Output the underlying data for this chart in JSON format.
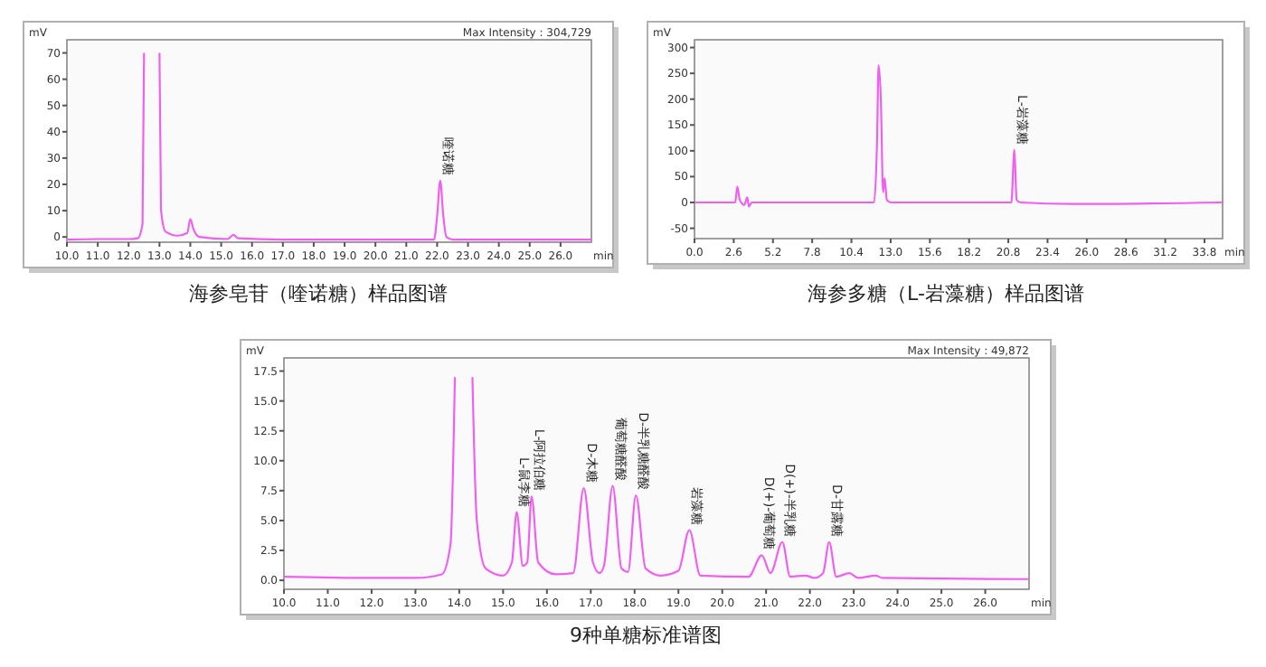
{
  "chart_data": [
    {
      "type": "line",
      "title": "海参皂苷（喹诺糖）样品图谱",
      "xlabel": "min",
      "ylabel": "mV",
      "xlim": [
        10,
        27
      ],
      "ylim": [
        -2,
        75
      ],
      "xticks": [
        {
          "value": 10,
          "label": "10.0"
        },
        {
          "value": 11,
          "label": "11.0"
        },
        {
          "value": 12,
          "label": "12.0"
        },
        {
          "value": 13,
          "label": "13.0"
        },
        {
          "value": 14,
          "label": "14.0"
        },
        {
          "value": 15,
          "label": "15.0"
        },
        {
          "value": 16,
          "label": "16.0"
        },
        {
          "value": 17,
          "label": "17.0"
        },
        {
          "value": 18,
          "label": "18.0"
        },
        {
          "value": 19,
          "label": "19.0"
        },
        {
          "value": 20,
          "label": "20.0"
        },
        {
          "value": 21,
          "label": "21.0"
        },
        {
          "value": 22,
          "label": "22.0"
        },
        {
          "value": 23,
          "label": "23.0"
        },
        {
          "value": 24,
          "label": "24.0"
        },
        {
          "value": 25,
          "label": "25.0"
        },
        {
          "value": 26,
          "label": "26.0"
        }
      ],
      "yticks": [
        0,
        10,
        20,
        30,
        40,
        50,
        60,
        70
      ],
      "x": [
        10,
        11,
        12,
        12.3,
        12.45,
        12.5,
        12.55,
        12.95,
        13.0,
        13.05,
        13.2,
        13.6,
        13.9,
        14.0,
        14.1,
        14.3,
        15.2,
        15.4,
        15.55,
        17,
        20,
        21.9,
        22.0,
        22.1,
        22.2,
        22.3,
        22.5,
        27
      ],
      "series": [
        {
          "color": "#f060f0",
          "values": [
            -1,
            -0.8,
            -0.8,
            -0.5,
            5,
            70,
            null,
            null,
            70,
            10,
            2,
            0.5,
            1.5,
            6.8,
            3,
            0,
            -0.8,
            0.8,
            -0.5,
            -1,
            -1,
            -1,
            8,
            21.4,
            8,
            0,
            -1,
            -1
          ]
        }
      ],
      "annotations": [
        "Max Intensity : 304,729",
        {
          "text": "喹诺糖",
          "x": 22.1,
          "y": 21.4
        }
      ]
    },
    {
      "type": "line",
      "title": "海参多糖（L-岩藻糖）样品图谱",
      "xlabel": "min",
      "ylabel": "mV",
      "xlim": [
        0,
        35
      ],
      "ylim": [
        -70,
        315
      ],
      "xticks": [
        {
          "value": 0,
          "label": "0.0"
        },
        2.6,
        5.2,
        7.8,
        10.4,
        {
          "value": 13,
          "label": "13.0"
        },
        15.6,
        18.2,
        20.8,
        23.4,
        {
          "value": 26,
          "label": "26.0"
        },
        28.6,
        31.2,
        33.8
      ],
      "yticks": [
        -50,
        0,
        50,
        100,
        150,
        200,
        250,
        300
      ],
      "x": [
        0,
        2.7,
        2.84,
        3.0,
        3.3,
        3.5,
        3.6,
        3.8,
        11.9,
        12.1,
        12.2,
        12.35,
        12.5,
        12.6,
        12.75,
        13,
        21,
        21.2,
        21.35,
        21.6,
        25,
        35
      ],
      "series": [
        {
          "color": "#f060f0",
          "values": [
            0,
            0,
            31,
            5,
            -5,
            10,
            -8,
            0,
            0,
            120,
            266,
            200,
            20,
            47,
            5,
            0,
            0,
            102,
            5,
            0,
            -3,
            0
          ]
        }
      ],
      "annotations": [
        {
          "text": "L-岩藻糖",
          "x": 21.2,
          "y": 102
        }
      ]
    },
    {
      "type": "line",
      "title": "9种单糖标准谱图",
      "xlabel": "min",
      "ylabel": "mV",
      "xlim": [
        10,
        27
      ],
      "ylim": [
        -0.75,
        18.6
      ],
      "xticks": [
        {
          "value": 10,
          "label": "10.0"
        },
        {
          "value": 11,
          "label": "11.0"
        },
        {
          "value": 12,
          "label": "12.0"
        },
        {
          "value": 13,
          "label": "13.0"
        },
        {
          "value": 14,
          "label": "14.0"
        },
        {
          "value": 15,
          "label": "15.0"
        },
        {
          "value": 16,
          "label": "16.0"
        },
        {
          "value": 17,
          "label": "17.0"
        },
        {
          "value": 18,
          "label": "18.0"
        },
        {
          "value": 19,
          "label": "19.0"
        },
        {
          "value": 20,
          "label": "20.0"
        },
        {
          "value": 21,
          "label": "21.0"
        },
        {
          "value": 22,
          "label": "22.0"
        },
        {
          "value": 23,
          "label": "23.0"
        },
        {
          "value": 24,
          "label": "24.0"
        },
        {
          "value": 25,
          "label": "25.0"
        },
        {
          "value": 26,
          "label": "26.0"
        }
      ],
      "yticks": [
        {
          "value": 0,
          "label": "0.0"
        },
        2.5,
        {
          "value": 5,
          "label": "5.0"
        },
        7.5,
        {
          "value": 10,
          "label": "10.0"
        },
        12.5,
        {
          "value": 15,
          "label": "15.0"
        },
        17.5
      ],
      "x": [
        10,
        12,
        13,
        13.6,
        13.8,
        13.9,
        13.95,
        14.25,
        14.3,
        14.4,
        14.6,
        15.0,
        15.2,
        15.31,
        15.45,
        15.55,
        15.65,
        15.8,
        16.2,
        16.6,
        16.84,
        17.05,
        17.2,
        17.3,
        17.5,
        17.7,
        17.85,
        18.03,
        18.25,
        18.6,
        19.0,
        19.25,
        19.5,
        20.6,
        20.9,
        21.1,
        21.37,
        21.55,
        21.9,
        22.1,
        22.3,
        22.44,
        22.6,
        22.9,
        23.1,
        23.5,
        23.65,
        27
      ],
      "series": [
        {
          "color": "#f060f0",
          "values": [
            0.3,
            0.2,
            0.2,
            0.5,
            3,
            17,
            null,
            null,
            17,
            5,
            1,
            0.4,
            1.5,
            5.7,
            1.2,
            1.5,
            7.0,
            1.5,
            0.5,
            0.6,
            7.7,
            1.5,
            0.6,
            1.2,
            7.9,
            1,
            0.7,
            7.1,
            1,
            0.4,
            0.8,
            4.2,
            0.4,
            0.3,
            2.1,
            0.6,
            3.2,
            0.3,
            0.4,
            0.2,
            0.6,
            3.2,
            0.3,
            0.6,
            0.2,
            0.4,
            0.2,
            0.1
          ]
        }
      ],
      "annotations": [
        "Max Intensity : 49,872",
        {
          "text": "L-鼠李糖",
          "x": 15.31,
          "y": 5.7
        },
        {
          "text": "L-阿拉伯糖",
          "x": 15.65,
          "y": 7.0
        },
        {
          "text": "D-木糖",
          "x": 16.84,
          "y": 7.7
        },
        {
          "text": "葡萄糖醛酸",
          "x": 17.5,
          "y": 7.9
        },
        {
          "text": "D-半乳糖醛酸",
          "x": 18.03,
          "y": 7.1
        },
        {
          "text": "岩藻糖",
          "x": 19.25,
          "y": 4.2
        },
        {
          "text": "D(+)-葡萄糖",
          "x": 20.9,
          "y": 2.1
        },
        {
          "text": "D(+)-半乳糖",
          "x": 21.37,
          "y": 3.2
        },
        {
          "text": "D-甘露糖",
          "x": 22.44,
          "y": 3.2
        }
      ]
    }
  ]
}
